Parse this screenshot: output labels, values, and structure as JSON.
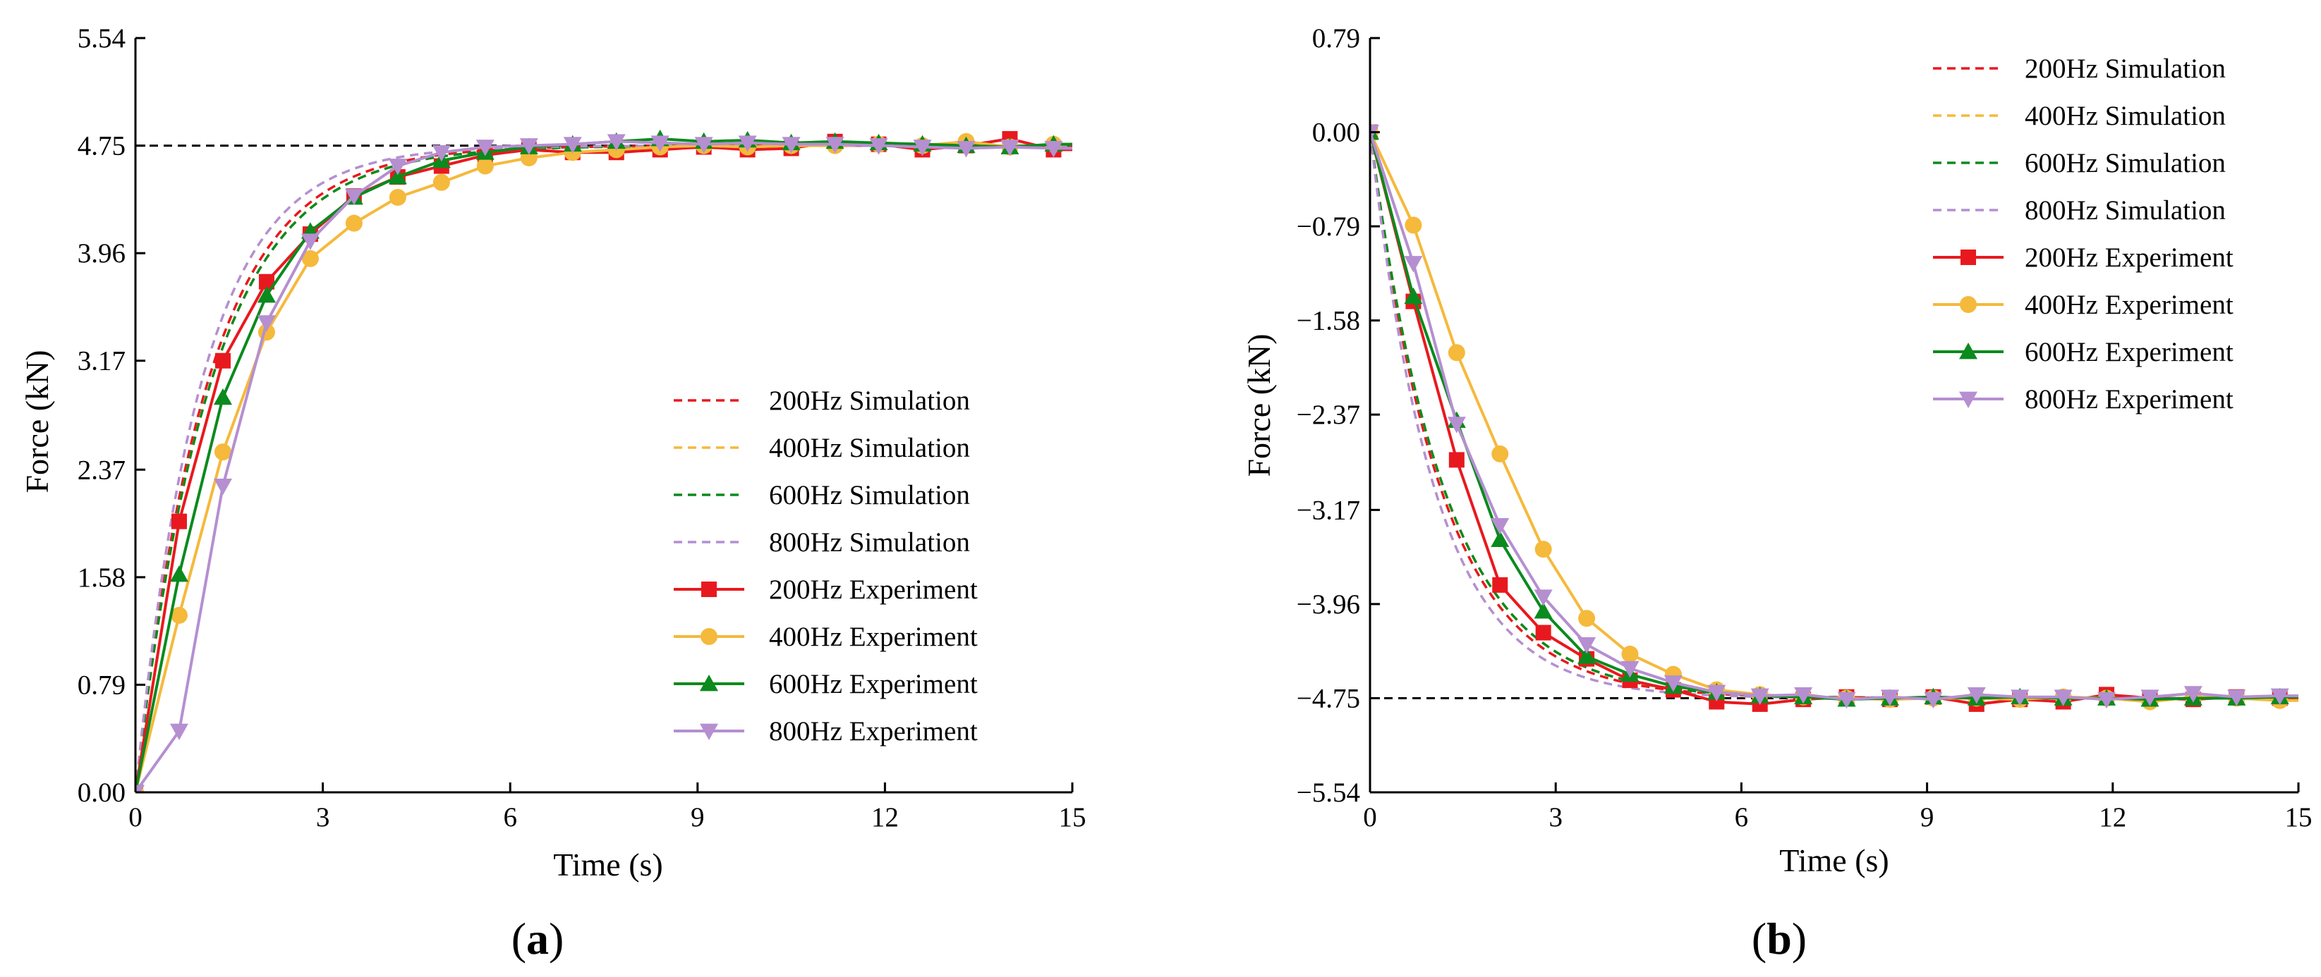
{
  "chart_data": [
    {
      "type": "line",
      "panel_label": "a",
      "xlabel": "Time (s)",
      "ylabel": "Force (kN)",
      "xlim": [
        0,
        15
      ],
      "ylim": [
        0,
        5.54
      ],
      "xticks": [
        0,
        3,
        6,
        9,
        12,
        15
      ],
      "yticks": [
        "0.00",
        "0.79",
        "1.58",
        "2.37",
        "3.17",
        "3.96",
        "4.75",
        "5.54"
      ],
      "reference_line": 4.75,
      "legend_position": "center-right",
      "series": [
        {
          "name": "200Hz Simulation",
          "kind": "simulation",
          "color": "#e8191e",
          "tau": 1.15
        },
        {
          "name": "400Hz Simulation",
          "kind": "simulation",
          "color": "#f5b93b",
          "tau": 1.2
        },
        {
          "name": "600Hz Simulation",
          "kind": "simulation",
          "color": "#0b8a1e",
          "tau": 1.2
        },
        {
          "name": "800Hz Simulation",
          "kind": "simulation",
          "color": "#b58fd0",
          "tau": 1.05
        },
        {
          "name": "200Hz Experiment",
          "kind": "experiment",
          "color": "#e8191e",
          "marker": "square",
          "x": [
            0,
            0.7,
            1.4,
            2.1,
            2.8,
            3.5,
            4.2,
            4.9,
            5.6,
            6.3,
            7.0,
            7.7,
            8.4,
            9.1,
            9.8,
            10.5,
            11.2,
            11.9,
            12.6,
            13.3,
            14.0,
            14.7
          ],
          "y": [
            0,
            1.99,
            3.17,
            3.75,
            4.1,
            4.38,
            4.52,
            4.6,
            4.68,
            4.72,
            4.7,
            4.7,
            4.72,
            4.74,
            4.72,
            4.73,
            4.78,
            4.76,
            4.72,
            4.75,
            4.8,
            4.72
          ]
        },
        {
          "name": "400Hz Experiment",
          "kind": "experiment",
          "color": "#f5b93b",
          "marker": "circle",
          "x": [
            0,
            0.7,
            1.4,
            2.1,
            2.8,
            3.5,
            4.2,
            4.9,
            5.6,
            6.3,
            7.0,
            7.7,
            8.4,
            9.1,
            9.8,
            10.5,
            11.2,
            11.9,
            12.6,
            13.3,
            14.0,
            14.7
          ],
          "y": [
            0,
            1.3,
            2.5,
            3.38,
            3.92,
            4.18,
            4.37,
            4.48,
            4.6,
            4.66,
            4.7,
            4.72,
            4.74,
            4.75,
            4.74,
            4.75,
            4.75,
            4.76,
            4.75,
            4.78,
            4.74,
            4.76
          ]
        },
        {
          "name": "600Hz Experiment",
          "kind": "experiment",
          "color": "#0b8a1e",
          "marker": "triangle-up",
          "x": [
            0,
            0.7,
            1.4,
            2.1,
            2.8,
            3.5,
            4.2,
            4.9,
            5.6,
            6.3,
            7.0,
            7.7,
            8.4,
            9.1,
            9.8,
            10.5,
            11.2,
            11.9,
            12.6,
            13.3,
            14.0,
            14.7
          ],
          "y": [
            0,
            1.6,
            2.9,
            3.65,
            4.12,
            4.37,
            4.52,
            4.64,
            4.7,
            4.74,
            4.76,
            4.78,
            4.8,
            4.78,
            4.79,
            4.77,
            4.78,
            4.77,
            4.76,
            4.75,
            4.74,
            4.76
          ]
        },
        {
          "name": "800Hz Experiment",
          "kind": "experiment",
          "color": "#b58fd0",
          "marker": "triangle-down",
          "x": [
            0,
            0.7,
            1.4,
            2.1,
            2.8,
            3.5,
            4.2,
            4.9,
            5.6,
            6.3,
            7.0,
            7.7,
            8.4,
            9.1,
            9.8,
            10.5,
            11.2,
            11.9,
            12.6,
            13.3,
            14.0,
            14.7
          ],
          "y": [
            0,
            0.45,
            2.25,
            3.45,
            4.05,
            4.38,
            4.6,
            4.7,
            4.74,
            4.75,
            4.76,
            4.78,
            4.77,
            4.76,
            4.77,
            4.76,
            4.76,
            4.75,
            4.74,
            4.73,
            4.74,
            4.73
          ]
        }
      ]
    },
    {
      "type": "line",
      "panel_label": "b",
      "xlabel": "Time (s)",
      "ylabel": "Force (kN)",
      "xlim": [
        0,
        15
      ],
      "ylim": [
        -5.54,
        0.79
      ],
      "xticks": [
        0,
        3,
        6,
        9,
        12,
        15
      ],
      "yticks": [
        "0.79",
        "0.00",
        "−0.79",
        "−1.58",
        "−2.37",
        "−3.17",
        "−3.96",
        "−4.75",
        "−5.54"
      ],
      "reference_line": -4.75,
      "legend_position": "top-right",
      "series": [
        {
          "name": "200Hz Simulation",
          "kind": "simulation",
          "color": "#e8191e",
          "tau": 1.15
        },
        {
          "name": "400Hz Simulation",
          "kind": "simulation",
          "color": "#f5b93b",
          "tau": 1.2
        },
        {
          "name": "600Hz Simulation",
          "kind": "simulation",
          "color": "#0b8a1e",
          "tau": 1.2
        },
        {
          "name": "800Hz Simulation",
          "kind": "simulation",
          "color": "#b58fd0",
          "tau": 1.05
        },
        {
          "name": "200Hz Experiment",
          "kind": "experiment",
          "color": "#e8191e",
          "marker": "square",
          "x": [
            0,
            0.7,
            1.4,
            2.1,
            2.8,
            3.5,
            4.2,
            4.9,
            5.6,
            6.3,
            7.0,
            7.7,
            8.4,
            9.1,
            9.8,
            10.5,
            11.2,
            11.9,
            12.6,
            13.3,
            14.0,
            14.7
          ],
          "y": [
            0,
            -1.42,
            -2.75,
            -3.8,
            -4.2,
            -4.42,
            -4.6,
            -4.68,
            -4.78,
            -4.8,
            -4.76,
            -4.74,
            -4.76,
            -4.74,
            -4.8,
            -4.76,
            -4.78,
            -4.72,
            -4.75,
            -4.76,
            -4.74,
            -4.75
          ]
        },
        {
          "name": "400Hz Experiment",
          "kind": "experiment",
          "color": "#f5b93b",
          "marker": "circle",
          "x": [
            0,
            0.7,
            1.4,
            2.1,
            2.8,
            3.5,
            4.2,
            4.9,
            5.6,
            6.3,
            7.0,
            7.7,
            8.4,
            9.1,
            9.8,
            10.5,
            11.2,
            11.9,
            12.6,
            13.3,
            14.0,
            14.7
          ],
          "y": [
            0,
            -0.78,
            -1.85,
            -2.7,
            -3.5,
            -4.08,
            -4.38,
            -4.55,
            -4.68,
            -4.72,
            -4.74,
            -4.75,
            -4.76,
            -4.75,
            -4.75,
            -4.76,
            -4.74,
            -4.75,
            -4.78,
            -4.74,
            -4.75,
            -4.77
          ]
        },
        {
          "name": "600Hz Experiment",
          "kind": "experiment",
          "color": "#0b8a1e",
          "marker": "triangle-up",
          "x": [
            0,
            0.7,
            1.4,
            2.1,
            2.8,
            3.5,
            4.2,
            4.9,
            5.6,
            6.3,
            7.0,
            7.7,
            8.4,
            9.1,
            9.8,
            10.5,
            11.2,
            11.9,
            12.6,
            13.3,
            14.0,
            14.7
          ],
          "y": [
            0,
            -1.38,
            -2.42,
            -3.42,
            -4.02,
            -4.4,
            -4.55,
            -4.65,
            -4.7,
            -4.73,
            -4.74,
            -4.76,
            -4.75,
            -4.74,
            -4.75,
            -4.74,
            -4.75,
            -4.75,
            -4.76,
            -4.75,
            -4.75,
            -4.74
          ]
        },
        {
          "name": "800Hz Experiment",
          "kind": "experiment",
          "color": "#b58fd0",
          "marker": "triangle-down",
          "x": [
            0,
            0.7,
            1.4,
            2.1,
            2.8,
            3.5,
            4.2,
            4.9,
            5.6,
            6.3,
            7.0,
            7.7,
            8.4,
            9.1,
            9.8,
            10.5,
            11.2,
            11.9,
            12.6,
            13.3,
            14.0,
            14.7
          ],
          "y": [
            0,
            -1.1,
            -2.45,
            -3.3,
            -3.9,
            -4.3,
            -4.5,
            -4.62,
            -4.7,
            -4.73,
            -4.72,
            -4.76,
            -4.74,
            -4.76,
            -4.72,
            -4.74,
            -4.74,
            -4.76,
            -4.74,
            -4.71,
            -4.74,
            -4.73
          ]
        }
      ]
    }
  ]
}
